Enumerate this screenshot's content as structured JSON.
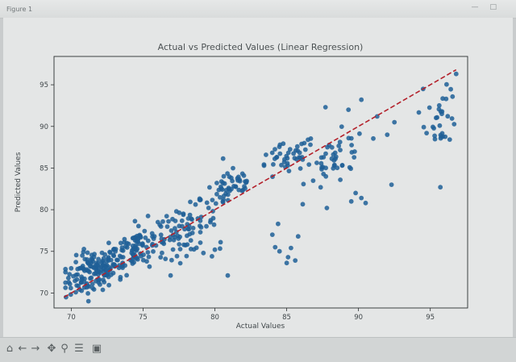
{
  "window": {
    "title": "Figure 1"
  },
  "toolbar": {
    "icons": [
      "home-icon",
      "back-arrow-icon",
      "forward-arrow-icon",
      "pan-icon",
      "zoom-icon",
      "configure-icon",
      "save-icon"
    ]
  },
  "colors": {
    "points": "#1f5f96",
    "fit_line": "#b3202a",
    "background": "#e4e6e6"
  },
  "chart_data": {
    "type": "scatter",
    "title": "Actual vs Predicted Values (Linear Regression)",
    "xlabel": "Actual Values",
    "ylabel": "Predicted Values",
    "xlim": [
      68.8,
      97.6
    ],
    "ylim": [
      68.2,
      98.4
    ],
    "xticks": [
      70,
      75,
      80,
      85,
      90,
      95
    ],
    "yticks": [
      70,
      75,
      80,
      85,
      90,
      95
    ],
    "grid": false,
    "reference_line": {
      "x": [
        69.5,
        96.8
      ],
      "y": [
        69.5,
        96.8
      ],
      "style": "dashed"
    },
    "clusters": [
      {
        "x_center": 71.5,
        "y_center": 72.5,
        "x_spread": 1.4,
        "y_spread": 1.8,
        "count": 140
      },
      {
        "x_center": 74.5,
        "y_center": 75.5,
        "x_spread": 1.5,
        "y_spread": 2.0,
        "count": 110
      },
      {
        "x_center": 78,
        "y_center": 77.5,
        "x_spread": 1.5,
        "y_spread": 2.0,
        "count": 70
      },
      {
        "x_center": 81,
        "y_center": 82.5,
        "x_spread": 1.4,
        "y_spread": 1.7,
        "count": 55
      },
      {
        "x_center": 85,
        "y_center": 86,
        "x_spread": 1.5,
        "y_spread": 1.4,
        "count": 45
      },
      {
        "x_center": 88.5,
        "y_center": 86,
        "x_spread": 1.5,
        "y_spread": 2.2,
        "count": 45
      },
      {
        "x_center": 95.8,
        "y_center": 91,
        "x_spread": 0.8,
        "y_spread": 2.3,
        "count": 30
      }
    ],
    "points_extra": [
      [
        84.0,
        77.0
      ],
      [
        84.4,
        78.3
      ],
      [
        84.2,
        75.5
      ],
      [
        84.5,
        75.0
      ],
      [
        85.1,
        74.3
      ],
      [
        85.3,
        75.4
      ],
      [
        85.6,
        73.9
      ],
      [
        85.8,
        76.8
      ],
      [
        85.0,
        73.6
      ],
      [
        80.0,
        75.2
      ],
      [
        79.8,
        74.4
      ],
      [
        80.4,
        76.1
      ],
      [
        80.9,
        72.1
      ],
      [
        79.2,
        74.8
      ],
      [
        89.5,
        81.0
      ],
      [
        90.2,
        81.4
      ],
      [
        90.5,
        80.8
      ],
      [
        89.8,
        82.0
      ],
      [
        87.8,
        80.2
      ],
      [
        92.3,
        83.0
      ],
      [
        95.7,
        82.7
      ],
      [
        92.0,
        89.0
      ],
      [
        92.5,
        90.5
      ],
      [
        87.7,
        92.3
      ],
      [
        89.3,
        92.0
      ],
      [
        91.3,
        91.2
      ],
      [
        90.2,
        93.2
      ],
      [
        96.1,
        93.3
      ],
      [
        96.8,
        96.3
      ],
      [
        94.5,
        94.5
      ]
    ]
  }
}
